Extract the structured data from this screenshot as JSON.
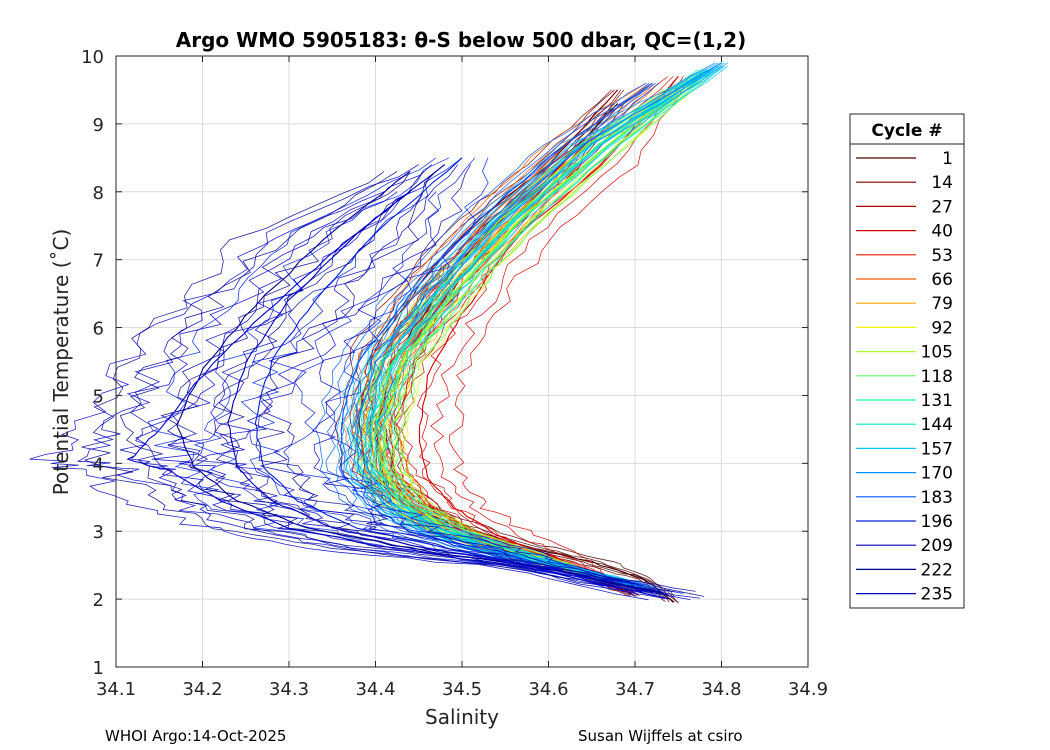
{
  "chart_data": {
    "type": "line",
    "title": "Argo WMO 5905183: θ-S below 500 dbar,  QC=(1,2)",
    "xlabel": "Salinity",
    "ylabel": "Potential Temperature (˚C)",
    "xlim": [
      34.1,
      34.9
    ],
    "ylim": [
      1,
      10
    ],
    "xticks": [
      "34.1",
      "34.2",
      "34.3",
      "34.4",
      "34.5",
      "34.6",
      "34.7",
      "34.8",
      "34.9"
    ],
    "yticks": [
      "1",
      "2",
      "3",
      "4",
      "5",
      "6",
      "7",
      "8",
      "9",
      "10"
    ],
    "grid": true,
    "legend": {
      "title": "Cycle #",
      "placement": "outside-right",
      "entries": [
        {
          "label": "1",
          "color": "#4a0000"
        },
        {
          "label": "14",
          "color": "#800000"
        },
        {
          "label": "27",
          "color": "#b30000"
        },
        {
          "label": "40",
          "color": "#d40000"
        },
        {
          "label": "53",
          "color": "#f21a00"
        },
        {
          "label": "66",
          "color": "#ff5a00"
        },
        {
          "label": "79",
          "color": "#ffa000"
        },
        {
          "label": "92",
          "color": "#f0f000"
        },
        {
          "label": "105",
          "color": "#a8ff30"
        },
        {
          "label": "118",
          "color": "#60ff60"
        },
        {
          "label": "131",
          "color": "#20ffa0"
        },
        {
          "label": "144",
          "color": "#00e8c8"
        },
        {
          "label": "157",
          "color": "#00c8ff"
        },
        {
          "label": "170",
          "color": "#0090ff"
        },
        {
          "label": "183",
          "color": "#0058ff"
        },
        {
          "label": "196",
          "color": "#0020e0"
        },
        {
          "label": "209",
          "color": "#0000b8"
        },
        {
          "label": "222",
          "color": "#000090"
        },
        {
          "label": "235",
          "color": "#0000c8"
        }
      ]
    },
    "series": [
      {
        "name": "1",
        "color": "#4a0000",
        "s": [
          34.745,
          34.71,
          34.65,
          34.55,
          34.46,
          34.41,
          34.4,
          34.42,
          34.47,
          34.52,
          34.6,
          34.68
        ],
        "t": [
          1.95,
          2.3,
          2.55,
          2.85,
          3.25,
          3.7,
          4.5,
          5.5,
          6.5,
          7.3,
          8.2,
          9.3
        ]
      },
      {
        "name": "14",
        "color": "#800000",
        "s": [
          34.7,
          34.66,
          34.58,
          34.5,
          34.43,
          34.39,
          34.38,
          34.4,
          34.46,
          34.52,
          34.6,
          34.68
        ],
        "t": [
          2.05,
          2.3,
          2.6,
          2.95,
          3.4,
          3.9,
          4.7,
          5.7,
          6.8,
          7.6,
          8.4,
          9.5
        ]
      },
      {
        "name": "27",
        "color": "#b30000",
        "s": [
          34.69,
          34.64,
          34.58,
          34.51,
          34.46,
          34.42,
          34.41,
          34.43,
          34.49,
          34.56,
          34.65
        ],
        "t": [
          2.1,
          2.35,
          2.6,
          2.95,
          3.4,
          3.9,
          4.6,
          5.5,
          6.6,
          7.6,
          8.8
        ]
      },
      {
        "name": "40",
        "color": "#d40000",
        "s": [
          34.7,
          34.65,
          34.6,
          34.54,
          34.49,
          34.46,
          34.45,
          34.46,
          34.5,
          34.56,
          34.66,
          34.75
        ],
        "t": [
          2.1,
          2.4,
          2.65,
          2.95,
          3.35,
          3.8,
          4.4,
          5.3,
          6.2,
          7.3,
          8.4,
          9.7
        ]
      },
      {
        "name": "53",
        "color": "#f21a00",
        "s": [
          34.7,
          34.65,
          34.58,
          34.5,
          34.44,
          34.41,
          34.4,
          34.42,
          34.48,
          34.55,
          34.63
        ],
        "t": [
          2.15,
          2.4,
          2.65,
          2.95,
          3.4,
          3.9,
          4.6,
          5.5,
          6.5,
          7.5,
          8.6
        ]
      },
      {
        "name": "66",
        "color": "#ff5a00",
        "s": [
          34.7,
          34.64,
          34.57,
          34.49,
          34.43,
          34.4,
          34.39,
          34.41,
          34.46,
          34.53,
          34.62,
          34.72
        ],
        "t": [
          2.15,
          2.4,
          2.65,
          3.0,
          3.4,
          3.95,
          4.7,
          5.6,
          6.6,
          7.6,
          8.7,
          9.6
        ]
      },
      {
        "name": "79",
        "color": "#ffa000",
        "s": [
          34.7,
          34.64,
          34.57,
          34.5,
          34.44,
          34.41,
          34.4,
          34.42,
          34.48,
          34.56,
          34.65,
          34.74
        ],
        "t": [
          2.15,
          2.4,
          2.65,
          2.95,
          3.35,
          3.85,
          4.6,
          5.5,
          6.5,
          7.5,
          8.6,
          9.5
        ]
      },
      {
        "name": "92",
        "color": "#f0f000",
        "s": [
          34.7,
          34.63,
          34.56,
          34.49,
          34.44,
          34.41,
          34.41,
          34.43,
          34.49,
          34.56,
          34.66,
          34.76
        ],
        "t": [
          2.15,
          2.4,
          2.65,
          2.95,
          3.35,
          3.85,
          4.55,
          5.45,
          6.5,
          7.5,
          8.6,
          9.6
        ]
      },
      {
        "name": "105",
        "color": "#a8ff30",
        "s": [
          34.7,
          34.63,
          34.56,
          34.49,
          34.44,
          34.41,
          34.41,
          34.43,
          34.49,
          34.57,
          34.67,
          34.78
        ],
        "t": [
          2.2,
          2.45,
          2.7,
          3.0,
          3.4,
          3.9,
          4.6,
          5.5,
          6.5,
          7.6,
          8.7,
          9.7
        ]
      },
      {
        "name": "118",
        "color": "#60ff60",
        "s": [
          34.7,
          34.63,
          34.56,
          34.49,
          34.43,
          34.405,
          34.405,
          34.43,
          34.49,
          34.57,
          34.67,
          34.78
        ],
        "t": [
          2.2,
          2.45,
          2.7,
          3.0,
          3.4,
          3.9,
          4.6,
          5.5,
          6.5,
          7.6,
          8.7,
          9.75
        ]
      },
      {
        "name": "131",
        "color": "#20ffa0",
        "s": [
          34.7,
          34.63,
          34.55,
          34.48,
          34.43,
          34.4,
          34.4,
          34.42,
          34.48,
          34.56,
          34.66,
          34.78
        ],
        "t": [
          2.2,
          2.45,
          2.7,
          3.0,
          3.4,
          3.9,
          4.6,
          5.5,
          6.5,
          7.6,
          8.7,
          9.8
        ]
      },
      {
        "name": "144",
        "color": "#00e8c8",
        "s": [
          34.7,
          34.63,
          34.55,
          34.48,
          34.42,
          34.395,
          34.395,
          34.42,
          34.48,
          34.56,
          34.66,
          34.79
        ],
        "t": [
          2.2,
          2.45,
          2.7,
          3.0,
          3.4,
          3.9,
          4.6,
          5.5,
          6.5,
          7.6,
          8.7,
          9.8
        ]
      },
      {
        "name": "157",
        "color": "#00c8ff",
        "s": [
          34.71,
          34.63,
          34.55,
          34.47,
          34.42,
          34.39,
          34.39,
          34.41,
          34.47,
          34.55,
          34.65,
          34.8
        ],
        "t": [
          2.2,
          2.45,
          2.7,
          3.0,
          3.4,
          3.9,
          4.6,
          5.5,
          6.5,
          7.6,
          8.7,
          9.85
        ]
      },
      {
        "name": "170",
        "color": "#0090ff",
        "s": [
          34.72,
          34.63,
          34.54,
          34.46,
          34.41,
          34.38,
          34.38,
          34.4,
          34.46,
          34.54,
          34.64,
          34.8
        ],
        "t": [
          2.15,
          2.45,
          2.7,
          3.0,
          3.4,
          3.9,
          4.6,
          5.5,
          6.5,
          7.6,
          8.7,
          9.9
        ]
      },
      {
        "name": "183",
        "color": "#0058ff",
        "s": [
          34.72,
          34.62,
          34.52,
          34.44,
          34.39,
          34.36,
          34.36,
          34.38,
          34.44,
          34.52,
          34.62,
          34.72
        ],
        "t": [
          2.1,
          2.4,
          2.7,
          3.0,
          3.4,
          3.9,
          4.6,
          5.5,
          6.5,
          7.6,
          8.7,
          9.6
        ]
      },
      {
        "name": "196",
        "color": "#0020e0",
        "s": [
          34.72,
          34.6,
          34.48,
          34.38,
          34.31,
          34.27,
          34.26,
          34.28,
          34.33,
          34.4,
          34.5
        ],
        "t": [
          2.1,
          2.45,
          2.75,
          3.05,
          3.45,
          3.95,
          4.6,
          5.5,
          6.4,
          7.4,
          8.5
        ]
      },
      {
        "name": "209",
        "color": "#0000b8",
        "s": [
          34.73,
          34.6,
          34.46,
          34.35,
          34.28,
          34.24,
          34.23,
          34.25,
          34.3,
          34.38,
          34.48
        ],
        "t": [
          2.1,
          2.45,
          2.75,
          3.05,
          3.45,
          3.95,
          4.6,
          5.5,
          6.4,
          7.4,
          8.4
        ]
      },
      {
        "name": "222",
        "color": "#000090",
        "s": [
          34.74,
          34.6,
          34.44,
          34.32,
          34.24,
          34.19,
          34.17,
          34.2,
          34.26,
          34.34,
          34.44
        ],
        "t": [
          2.05,
          2.45,
          2.75,
          3.05,
          3.45,
          3.95,
          4.55,
          5.4,
          6.3,
          7.3,
          8.3
        ]
      },
      {
        "name": "235",
        "color": "#0000c8",
        "s": [
          34.74,
          34.58,
          34.42,
          34.3,
          34.22,
          34.16,
          34.115,
          34.15,
          34.2,
          34.27,
          34.36,
          34.44
        ],
        "t": [
          2.0,
          2.45,
          2.75,
          3.05,
          3.45,
          3.9,
          4.05,
          4.5,
          5.3,
          6.2,
          7.2,
          8.0
        ]
      }
    ]
  },
  "footer": {
    "left": "WHOI Argo:14-Oct-2025",
    "right": "Susan Wijffels at csiro"
  }
}
